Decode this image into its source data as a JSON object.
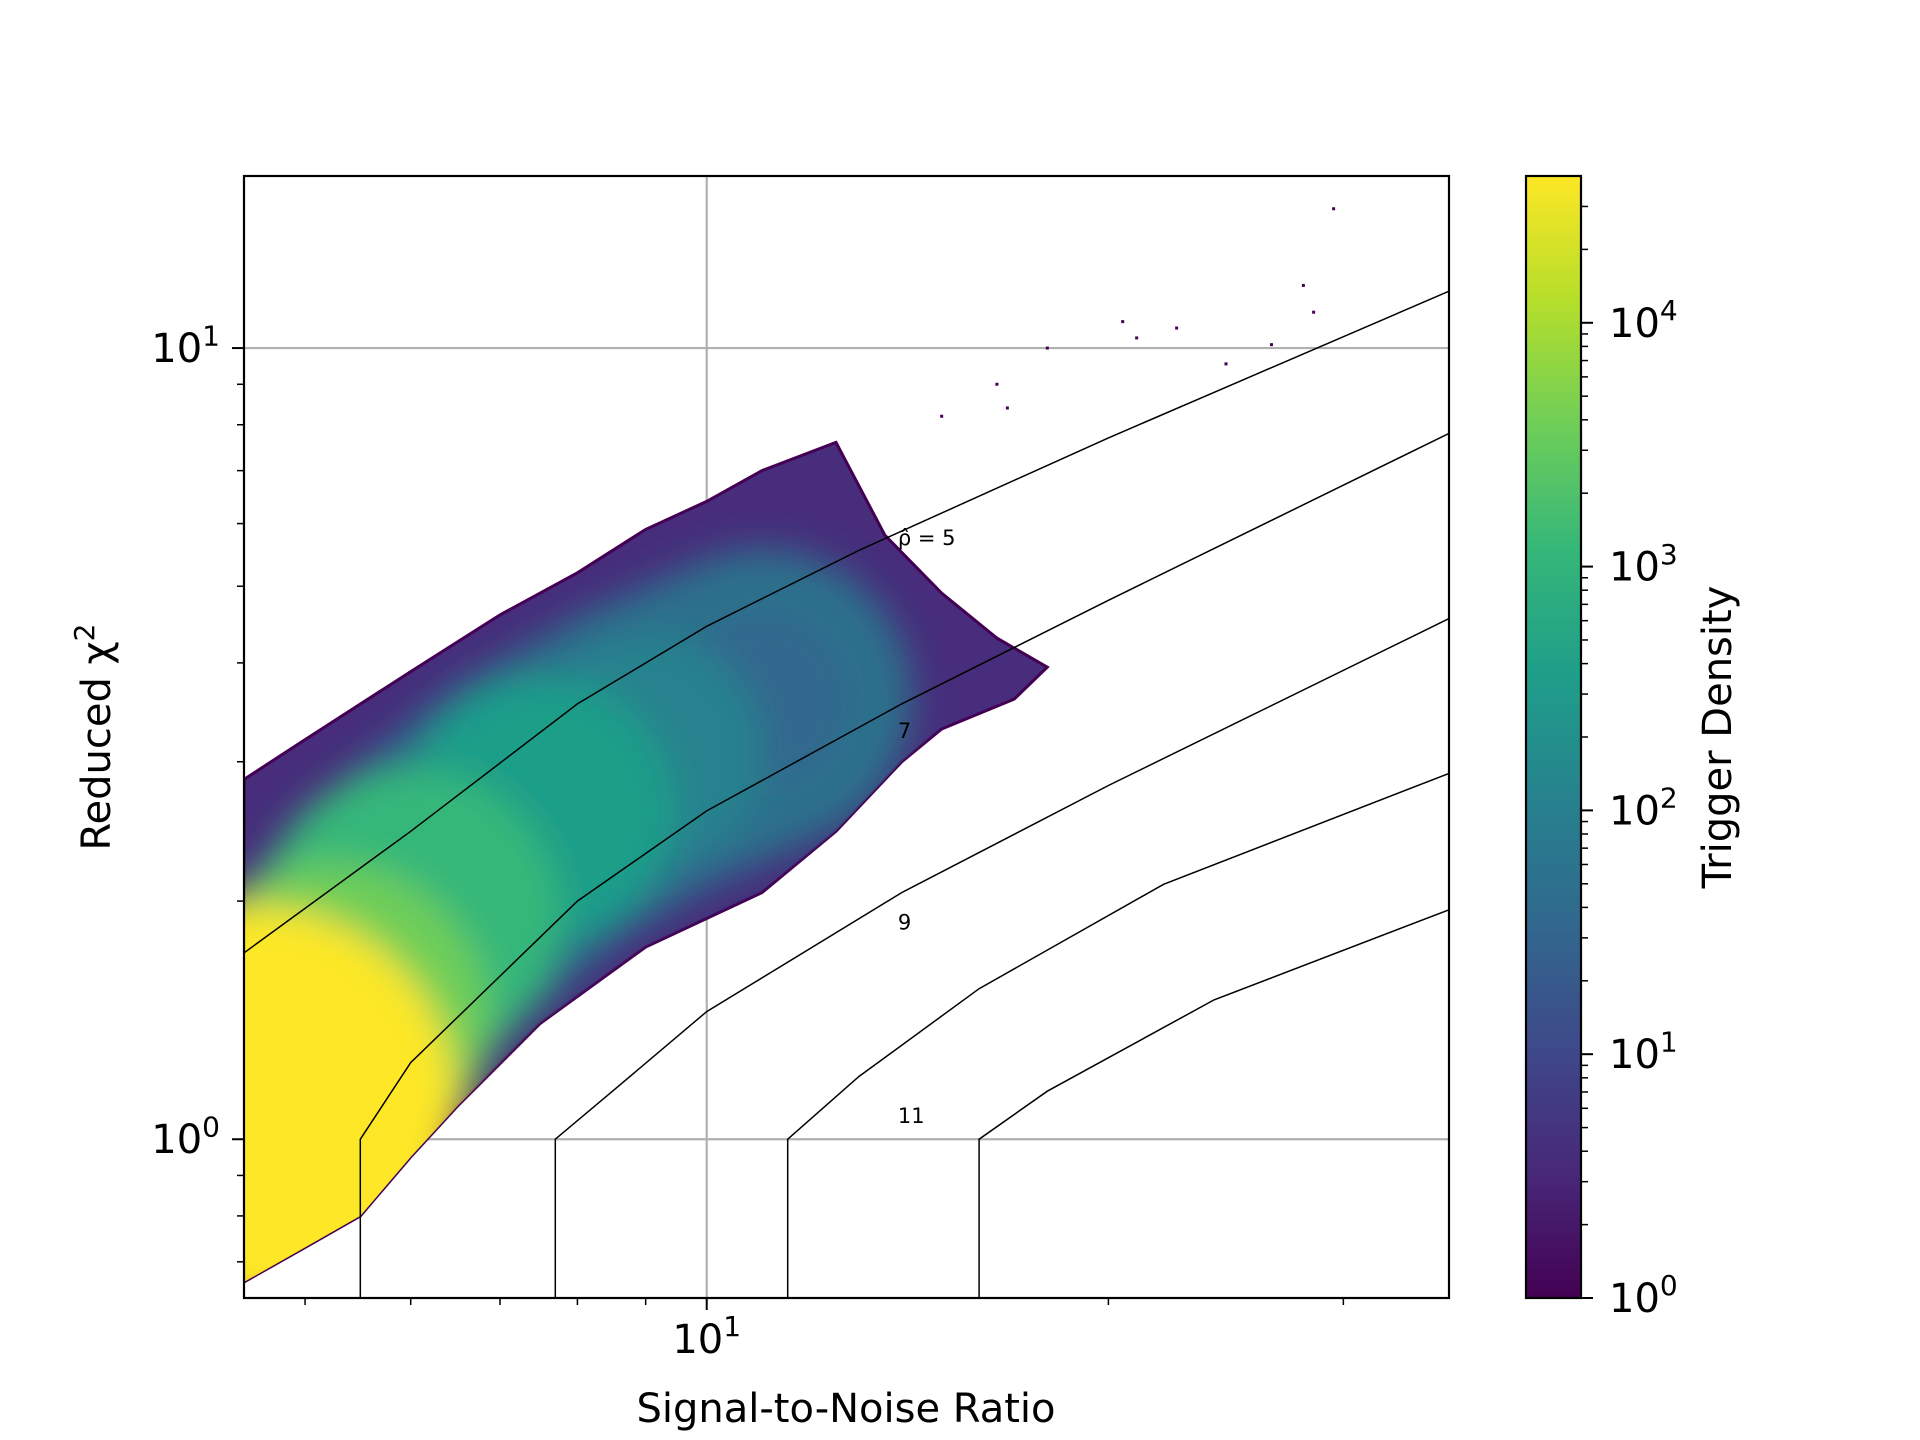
{
  "chart_data": {
    "type": "heatmap",
    "plot_kind": "hexbin",
    "title": "",
    "xlabel": "Signal-to-Noise Ratio",
    "ylabel": "Reduced χ²",
    "xscale": "log",
    "yscale": "log",
    "xlim": [
      4.5,
      36
    ],
    "ylim": [
      0.63,
      16.5
    ],
    "grid": true,
    "x_ticks": [
      {
        "value": 10,
        "base": "10",
        "exp": "1"
      }
    ],
    "y_ticks": [
      {
        "value": 1,
        "base": "10",
        "exp": "0"
      },
      {
        "value": 10,
        "base": "10",
        "exp": "1"
      }
    ],
    "colorbar": {
      "label": "Trigger Density",
      "scale": "log",
      "colormap": "viridis",
      "range": [
        1,
        40000
      ],
      "ticks": [
        {
          "value": 1,
          "base": "10",
          "exp": "0"
        },
        {
          "value": 10,
          "base": "10",
          "exp": "1"
        },
        {
          "value": 100,
          "base": "10",
          "exp": "2"
        },
        {
          "value": 1000,
          "base": "10",
          "exp": "3"
        },
        {
          "value": 10000,
          "base": "10",
          "exp": "4"
        }
      ],
      "colors": [
        "#440154",
        "#482878",
        "#3e4989",
        "#31688e",
        "#26828e",
        "#1f9e89",
        "#35b779",
        "#6ece58",
        "#b5de2b",
        "#fde725"
      ]
    },
    "density_region": {
      "description_free_outline": [
        [
          4.5,
          2.85
        ],
        [
          5.0,
          3.2
        ],
        [
          6.0,
          3.9
        ],
        [
          7.0,
          4.6
        ],
        [
          8.0,
          5.2
        ],
        [
          9.0,
          5.9
        ],
        [
          10.0,
          6.4
        ],
        [
          11.0,
          7.0
        ],
        [
          12.5,
          7.6
        ],
        [
          13.6,
          5.8
        ],
        [
          15.0,
          4.9
        ],
        [
          16.5,
          4.3
        ],
        [
          18.0,
          3.95
        ],
        [
          17.0,
          3.6
        ],
        [
          15.0,
          3.3
        ],
        [
          14.0,
          3.0
        ],
        [
          12.5,
          2.45
        ],
        [
          11.0,
          2.05
        ],
        [
          9.0,
          1.75
        ],
        [
          7.5,
          1.4
        ],
        [
          6.5,
          1.1
        ],
        [
          6.0,
          0.95
        ],
        [
          5.5,
          0.8
        ],
        [
          5.0,
          0.73
        ],
        [
          4.5,
          0.66
        ]
      ],
      "core_points": [
        {
          "x": 4.6,
          "y": 1.1,
          "density": 40000
        },
        {
          "x": 5.2,
          "y": 1.4,
          "density": 3000
        },
        {
          "x": 6.0,
          "y": 1.9,
          "density": 1500
        },
        {
          "x": 7.5,
          "y": 2.6,
          "density": 500
        },
        {
          "x": 9.0,
          "y": 3.1,
          "density": 150
        },
        {
          "x": 11.0,
          "y": 3.6,
          "density": 20
        }
      ]
    },
    "contours": [
      {
        "label": "ρ̂ = 5",
        "points": [
          [
            4.5,
            1.72
          ],
          [
            6.0,
            2.45
          ],
          [
            8.0,
            3.55
          ],
          [
            10.0,
            4.45
          ],
          [
            13.0,
            5.55
          ],
          [
            20.0,
            7.7
          ],
          [
            36.0,
            11.8
          ]
        ],
        "label_at": [
          14.2,
          5.75
        ]
      },
      {
        "label": "7",
        "points": [
          [
            5.5,
            0.63
          ],
          [
            5.5,
            1.0
          ],
          [
            6.0,
            1.25
          ],
          [
            8.0,
            2.0
          ],
          [
            10.0,
            2.6
          ],
          [
            14.0,
            3.55
          ],
          [
            20.0,
            4.8
          ],
          [
            36.0,
            7.8
          ]
        ],
        "label_at": [
          14.2,
          3.28
        ]
      },
      {
        "label": "9",
        "points": [
          [
            7.7,
            0.63
          ],
          [
            7.7,
            1.0
          ],
          [
            8.5,
            1.15
          ],
          [
            10.0,
            1.45
          ],
          [
            14.0,
            2.05
          ],
          [
            20.0,
            2.8
          ],
          [
            36.0,
            4.55
          ]
        ],
        "label_at": [
          14.2,
          1.88
        ]
      },
      {
        "label": "11",
        "points": [
          [
            11.5,
            0.63
          ],
          [
            11.5,
            1.0
          ],
          [
            13.0,
            1.2
          ],
          [
            16.0,
            1.55
          ],
          [
            22.0,
            2.1
          ],
          [
            36.0,
            2.9
          ]
        ],
        "label_at": [
          14.2,
          1.07
        ]
      },
      {
        "label": "",
        "points": [
          [
            16.0,
            0.63
          ],
          [
            16.0,
            1.0
          ],
          [
            18.0,
            1.15
          ],
          [
            24.0,
            1.5
          ],
          [
            36.0,
            1.95
          ]
        ],
        "label_at": null
      }
    ],
    "outliers": [
      [
        29.5,
        15.0
      ],
      [
        22.5,
        10.6
      ],
      [
        21.0,
        10.3
      ],
      [
        20.5,
        10.8
      ],
      [
        26.5,
        10.1
      ],
      [
        28.0,
        12.0
      ],
      [
        28.5,
        11.1
      ],
      [
        24.5,
        9.55
      ],
      [
        16.5,
        9.0
      ],
      [
        16.8,
        8.4
      ],
      [
        15.0,
        8.2
      ],
      [
        18.0,
        10.0
      ]
    ]
  }
}
